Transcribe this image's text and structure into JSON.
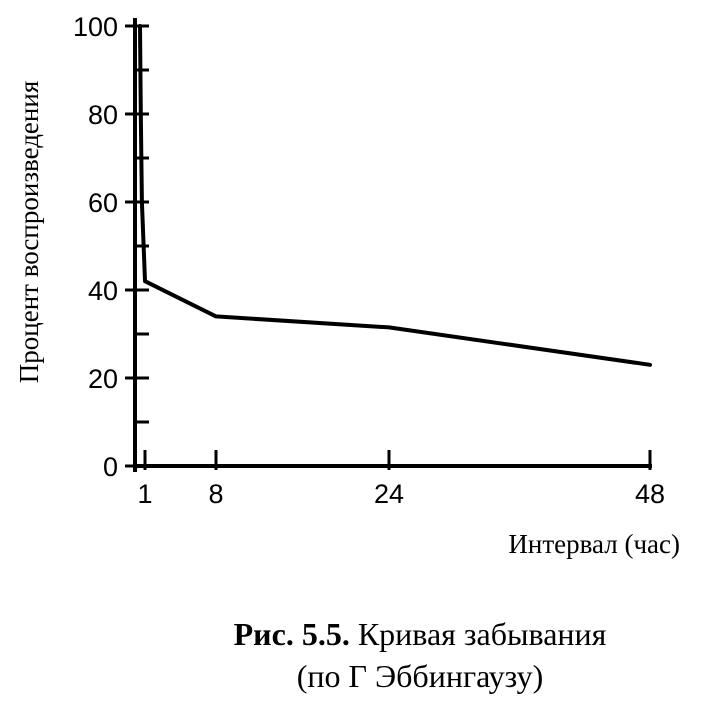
{
  "chart_data": {
    "type": "line",
    "title": "",
    "xlabel": "Интервал (час)",
    "ylabel": "Процент воспроизведения",
    "x_ticks": [
      1,
      8,
      24,
      48
    ],
    "y_ticks": [
      0,
      20,
      40,
      60,
      80,
      100
    ],
    "xlim": [
      0.2,
      48
    ],
    "ylim": [
      0,
      100
    ],
    "grid": false,
    "series": [
      {
        "x": [
          0.2,
          0.33,
          0.5,
          1,
          8,
          24,
          48
        ],
        "y": [
          100,
          80,
          60,
          42,
          34,
          31.5,
          23
        ]
      }
    ]
  },
  "caption": {
    "label": "Рис. 5.5.",
    "text": "Кривая забывания",
    "source": "(по Г  Эббингаузу)"
  },
  "colors": {
    "ink": "#000000",
    "background": "#ffffff"
  }
}
